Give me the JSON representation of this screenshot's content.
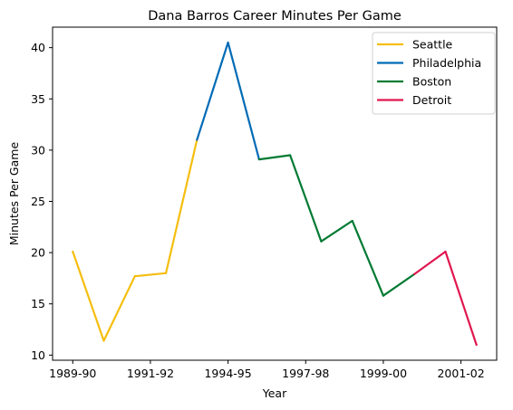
{
  "chart_data": {
    "type": "line",
    "title": "Dana Barros Career Minutes Per Game",
    "xlabel": "Year",
    "ylabel": "Minutes Per Game",
    "x_tick_labels": [
      "1989-90",
      "1991-92",
      "1994-95",
      "1997-98",
      "1999-00",
      "2001-02"
    ],
    "x_tick_indices": [
      0,
      2.5,
      5,
      7.5,
      10,
      12.5
    ],
    "y_ticks": [
      10,
      15,
      20,
      25,
      30,
      35,
      40
    ],
    "xlim": [
      -0.65,
      13.65
    ],
    "ylim": [
      9.5,
      42
    ],
    "grid": false,
    "legend_position": "top-right",
    "series": [
      {
        "name": "Seattle",
        "color": "#F5BE0F",
        "x": [
          0,
          1,
          2,
          3,
          4
        ],
        "y": [
          20.1,
          11.4,
          17.7,
          18.0,
          31.0
        ]
      },
      {
        "name": "Philadelphia",
        "color": "#006BB6",
        "x": [
          4,
          5,
          6
        ],
        "y": [
          31.0,
          40.5,
          29.1
        ]
      },
      {
        "name": "Boston",
        "color": "#007A33",
        "x": [
          6,
          7,
          8,
          9,
          10,
          11
        ],
        "y": [
          29.1,
          29.5,
          21.1,
          23.1,
          15.8,
          17.9
        ]
      },
      {
        "name": "Detroit",
        "color": "#E0174F",
        "x": [
          11,
          12,
          13
        ],
        "y": [
          17.9,
          20.1,
          11.0
        ]
      }
    ]
  }
}
